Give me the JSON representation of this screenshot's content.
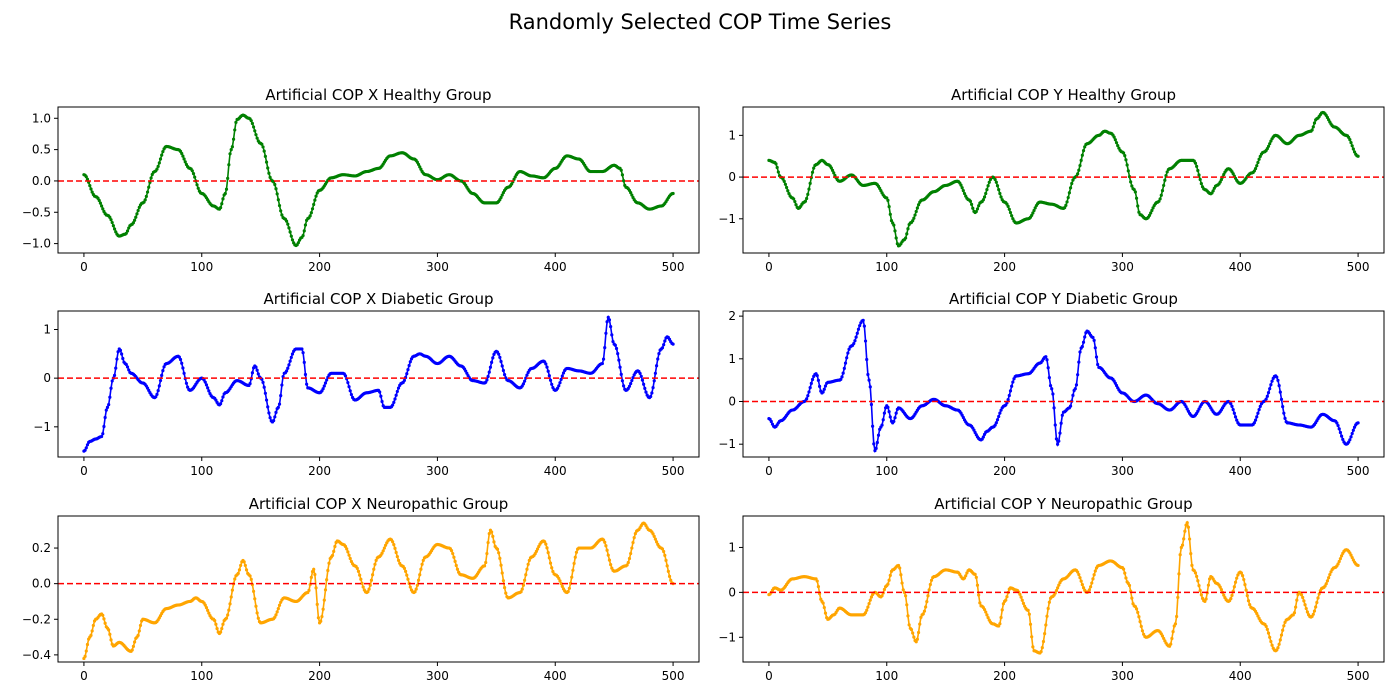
{
  "figure": {
    "title": "Randomly Selected COP Time Series"
  },
  "chart_data": [
    {
      "id": "x-healthy",
      "type": "line",
      "title": "Artificial COP X Healthy Group",
      "xlim": [
        -22,
        522
      ],
      "ylim": [
        -1.15,
        1.18
      ],
      "xticks": [
        0,
        100,
        200,
        300,
        400,
        500
      ],
      "yticks": [
        -1.0,
        -0.5,
        0.0,
        0.5,
        1.0
      ],
      "ytick_labels": [
        "−1.0",
        "−0.5",
        "0.0",
        "0.5",
        "1.0"
      ],
      "reference_line": 0,
      "series": [
        {
          "color": "#008000",
          "x": [
            0,
            10,
            20,
            30,
            35,
            40,
            50,
            60,
            70,
            80,
            90,
            100,
            110,
            115,
            120,
            125,
            130,
            135,
            140,
            150,
            160,
            170,
            180,
            185,
            190,
            200,
            210,
            220,
            230,
            240,
            250,
            260,
            270,
            280,
            290,
            300,
            310,
            320,
            330,
            340,
            350,
            360,
            370,
            380,
            390,
            400,
            410,
            420,
            430,
            440,
            450,
            455,
            460,
            470,
            480,
            490,
            500
          ],
          "y": [
            0.1,
            -0.25,
            -0.55,
            -0.88,
            -0.85,
            -0.7,
            -0.35,
            0.15,
            0.55,
            0.5,
            0.2,
            -0.2,
            -0.4,
            -0.45,
            -0.2,
            0.5,
            0.98,
            1.05,
            1.0,
            0.6,
            0.0,
            -0.6,
            -1.03,
            -0.9,
            -0.6,
            -0.15,
            0.05,
            0.1,
            0.08,
            0.15,
            0.2,
            0.4,
            0.45,
            0.35,
            0.1,
            0.02,
            0.1,
            0.0,
            -0.2,
            -0.35,
            -0.35,
            -0.1,
            0.15,
            0.08,
            0.05,
            0.2,
            0.4,
            0.35,
            0.15,
            0.15,
            0.25,
            0.2,
            -0.1,
            -0.35,
            -0.45,
            -0.4,
            -0.2
          ]
        }
      ]
    },
    {
      "id": "y-healthy",
      "type": "line",
      "title": "Artificial COP Y Healthy Group",
      "xlim": [
        -22,
        522
      ],
      "ylim": [
        -1.82,
        1.68
      ],
      "xticks": [
        0,
        100,
        200,
        300,
        400,
        500
      ],
      "yticks": [
        -1,
        0,
        1
      ],
      "ytick_labels": [
        "−1",
        "0",
        "1"
      ],
      "reference_line": 0,
      "series": [
        {
          "color": "#008000",
          "x": [
            0,
            5,
            10,
            20,
            25,
            30,
            40,
            45,
            50,
            60,
            70,
            80,
            90,
            100,
            105,
            110,
            115,
            120,
            130,
            140,
            150,
            160,
            170,
            175,
            180,
            190,
            200,
            210,
            220,
            230,
            240,
            250,
            260,
            270,
            280,
            285,
            290,
            300,
            310,
            315,
            320,
            330,
            340,
            350,
            360,
            370,
            375,
            380,
            390,
            400,
            410,
            420,
            430,
            440,
            450,
            460,
            465,
            470,
            480,
            490,
            500
          ],
          "y": [
            0.4,
            0.35,
            0.0,
            -0.5,
            -0.75,
            -0.6,
            0.3,
            0.4,
            0.3,
            -0.1,
            0.05,
            -0.2,
            -0.15,
            -0.5,
            -1.1,
            -1.65,
            -1.5,
            -1.1,
            -0.55,
            -0.35,
            -0.2,
            -0.1,
            -0.55,
            -0.85,
            -0.6,
            0.0,
            -0.6,
            -1.1,
            -1.0,
            -0.6,
            -0.65,
            -0.75,
            0.0,
            0.8,
            1.0,
            1.1,
            1.05,
            0.6,
            -0.3,
            -0.9,
            -1.0,
            -0.6,
            0.2,
            0.4,
            0.4,
            -0.3,
            -0.4,
            -0.2,
            0.2,
            -0.15,
            0.1,
            0.6,
            1.0,
            0.8,
            1.0,
            1.1,
            1.4,
            1.55,
            1.2,
            1.0,
            0.5
          ]
        }
      ]
    },
    {
      "id": "x-diabetic",
      "type": "line",
      "title": "Artificial COP X Diabetic Group",
      "xlim": [
        -22,
        522
      ],
      "ylim": [
        -1.62,
        1.38
      ],
      "xticks": [
        0,
        100,
        200,
        300,
        400,
        500
      ],
      "yticks": [
        -1,
        0,
        1
      ],
      "ytick_labels": [
        "−1",
        "0",
        "1"
      ],
      "reference_line": 0,
      "series": [
        {
          "color": "#0000ff",
          "x": [
            0,
            5,
            10,
            15,
            20,
            25,
            30,
            35,
            40,
            50,
            60,
            70,
            80,
            90,
            100,
            110,
            115,
            120,
            130,
            140,
            145,
            150,
            160,
            165,
            170,
            180,
            185,
            190,
            200,
            210,
            220,
            230,
            240,
            250,
            255,
            260,
            270,
            280,
            285,
            290,
            300,
            310,
            320,
            330,
            340,
            350,
            360,
            370,
            380,
            390,
            400,
            410,
            420,
            430,
            440,
            445,
            450,
            460,
            470,
            480,
            490,
            495,
            500
          ],
          "y": [
            -1.5,
            -1.3,
            -1.25,
            -1.2,
            -0.6,
            0.0,
            0.6,
            0.3,
            0.1,
            -0.1,
            -0.4,
            0.3,
            0.45,
            -0.25,
            0.0,
            -0.4,
            -0.55,
            -0.3,
            -0.05,
            -0.15,
            0.25,
            0.0,
            -0.9,
            -0.6,
            0.1,
            0.6,
            0.6,
            -0.2,
            -0.3,
            0.1,
            0.1,
            -0.45,
            -0.3,
            -0.25,
            -0.6,
            -0.6,
            -0.1,
            0.45,
            0.5,
            0.45,
            0.3,
            0.45,
            0.25,
            -0.05,
            -0.1,
            0.55,
            -0.05,
            -0.2,
            0.2,
            0.35,
            -0.25,
            0.2,
            0.15,
            0.1,
            0.3,
            1.25,
            0.7,
            -0.25,
            0.15,
            -0.4,
            0.6,
            0.85,
            0.7
          ]
        }
      ]
    },
    {
      "id": "y-diabetic",
      "type": "line",
      "title": "Artificial COP Y Diabetic Group",
      "xlim": [
        -22,
        522
      ],
      "ylim": [
        -1.3,
        2.12
      ],
      "xticks": [
        0,
        100,
        200,
        300,
        400,
        500
      ],
      "yticks": [
        -1,
        0,
        1,
        2
      ],
      "ytick_labels": [
        "−1",
        "0",
        "1",
        "2"
      ],
      "reference_line": 0,
      "series": [
        {
          "color": "#0000ff",
          "x": [
            0,
            5,
            10,
            20,
            30,
            40,
            45,
            50,
            60,
            70,
            80,
            85,
            90,
            95,
            100,
            105,
            110,
            120,
            130,
            140,
            150,
            160,
            170,
            180,
            185,
            190,
            200,
            210,
            220,
            230,
            235,
            240,
            245,
            250,
            255,
            260,
            265,
            270,
            275,
            280,
            290,
            300,
            310,
            320,
            330,
            340,
            350,
            360,
            370,
            380,
            390,
            400,
            410,
            420,
            430,
            440,
            450,
            460,
            470,
            480,
            490,
            500
          ],
          "y": [
            -0.4,
            -0.6,
            -0.45,
            -0.2,
            0.0,
            0.65,
            0.2,
            0.45,
            0.5,
            1.3,
            1.9,
            0.5,
            -1.15,
            -0.6,
            -0.1,
            -0.5,
            -0.15,
            -0.4,
            -0.1,
            0.05,
            -0.1,
            -0.2,
            -0.55,
            -0.9,
            -0.7,
            -0.6,
            -0.1,
            0.6,
            0.65,
            0.9,
            1.05,
            0.3,
            -1.0,
            -0.25,
            -0.15,
            0.3,
            1.25,
            1.65,
            1.5,
            0.8,
            0.55,
            0.2,
            0.0,
            0.15,
            -0.05,
            -0.2,
            0.0,
            -0.35,
            0.0,
            -0.3,
            0.0,
            -0.55,
            -0.55,
            0.0,
            0.6,
            -0.5,
            -0.55,
            -0.6,
            -0.3,
            -0.45,
            -1.0,
            -0.5
          ]
        }
      ]
    },
    {
      "id": "x-neuropathic",
      "type": "line",
      "title": "Artificial COP X Neuropathic Group",
      "xlim": [
        -22,
        522
      ],
      "ylim": [
        -0.44,
        0.38
      ],
      "xticks": [
        0,
        100,
        200,
        300,
        400,
        500
      ],
      "yticks": [
        -0.4,
        -0.2,
        0.0,
        0.2
      ],
      "ytick_labels": [
        "−0.4",
        "−0.2",
        "0.0",
        "0.2"
      ],
      "reference_line": 0,
      "series": [
        {
          "color": "#ffa500",
          "x": [
            0,
            5,
            10,
            15,
            20,
            25,
            30,
            40,
            45,
            50,
            60,
            70,
            80,
            90,
            95,
            100,
            110,
            115,
            120,
            130,
            135,
            140,
            150,
            160,
            170,
            180,
            190,
            195,
            200,
            210,
            215,
            220,
            230,
            240,
            250,
            260,
            270,
            280,
            290,
            300,
            310,
            320,
            330,
            340,
            345,
            350,
            360,
            370,
            380,
            390,
            400,
            410,
            420,
            430,
            440,
            450,
            460,
            470,
            475,
            480,
            490,
            500
          ],
          "y": [
            -0.42,
            -0.3,
            -0.2,
            -0.17,
            -0.25,
            -0.35,
            -0.33,
            -0.38,
            -0.3,
            -0.2,
            -0.22,
            -0.14,
            -0.12,
            -0.1,
            -0.08,
            -0.1,
            -0.2,
            -0.28,
            -0.2,
            0.05,
            0.13,
            0.05,
            -0.22,
            -0.2,
            -0.08,
            -0.1,
            -0.05,
            0.08,
            -0.22,
            0.15,
            0.24,
            0.22,
            0.1,
            -0.05,
            0.15,
            0.25,
            0.1,
            -0.05,
            0.15,
            0.22,
            0.2,
            0.05,
            0.03,
            0.1,
            0.3,
            0.2,
            -0.08,
            -0.05,
            0.15,
            0.24,
            0.05,
            -0.05,
            0.2,
            0.2,
            0.25,
            0.07,
            0.1,
            0.3,
            0.34,
            0.3,
            0.2,
            0.0
          ]
        }
      ]
    },
    {
      "id": "y-neuropathic",
      "type": "line",
      "title": "Artificial COP Y Neuropathic Group",
      "xlim": [
        -22,
        522
      ],
      "ylim": [
        -1.55,
        1.7
      ],
      "xticks": [
        0,
        100,
        200,
        300,
        400,
        500
      ],
      "yticks": [
        -1,
        0,
        1
      ],
      "ytick_labels": [
        "−1",
        "0",
        "1"
      ],
      "reference_line": 0,
      "series": [
        {
          "color": "#ffa500",
          "x": [
            0,
            5,
            10,
            20,
            30,
            40,
            45,
            50,
            55,
            60,
            70,
            80,
            90,
            95,
            100,
            105,
            110,
            115,
            120,
            125,
            130,
            140,
            150,
            160,
            165,
            170,
            175,
            180,
            190,
            195,
            200,
            205,
            210,
            220,
            225,
            230,
            240,
            250,
            260,
            270,
            280,
            290,
            300,
            305,
            310,
            320,
            330,
            340,
            345,
            350,
            355,
            360,
            370,
            375,
            380,
            390,
            400,
            410,
            420,
            430,
            440,
            445,
            450,
            460,
            470,
            480,
            490,
            500
          ],
          "y": [
            -0.05,
            0.1,
            0.05,
            0.3,
            0.35,
            0.3,
            -0.2,
            -0.6,
            -0.5,
            -0.35,
            -0.5,
            -0.5,
            0.0,
            -0.1,
            0.15,
            0.5,
            0.6,
            0.0,
            -0.8,
            -1.1,
            -0.5,
            0.35,
            0.5,
            0.45,
            0.3,
            0.5,
            0.4,
            -0.3,
            -0.7,
            -0.75,
            -0.2,
            0.1,
            0.05,
            -0.4,
            -1.3,
            -1.35,
            -0.1,
            0.3,
            0.5,
            0.0,
            0.6,
            0.7,
            0.55,
            0.2,
            -0.3,
            -1.0,
            -0.85,
            -1.2,
            -0.7,
            1.0,
            1.55,
            0.5,
            -0.2,
            0.35,
            0.2,
            -0.2,
            0.45,
            -0.35,
            -0.7,
            -1.3,
            -0.6,
            -0.5,
            0.0,
            -0.55,
            0.1,
            0.55,
            0.95,
            0.6
          ]
        }
      ]
    }
  ]
}
